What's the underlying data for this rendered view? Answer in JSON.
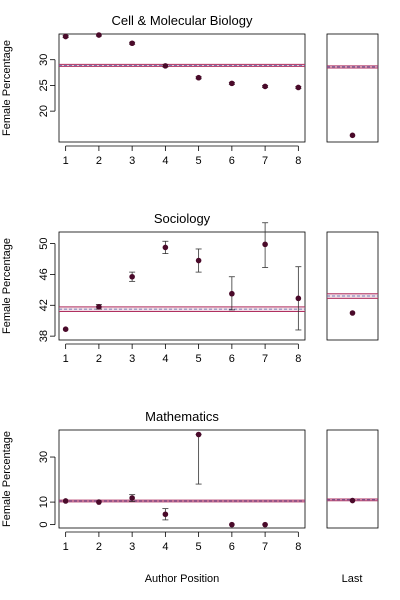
{
  "chart_data": [
    {
      "type": "scatter",
      "title": "Cell & Molecular Biology",
      "ylabel": "Female Percentage",
      "xlabel": "",
      "x": [
        1,
        2,
        3,
        4,
        5,
        6,
        7,
        8
      ],
      "xticks": [
        "1",
        "2",
        "3",
        "4",
        "5",
        "6",
        "7",
        "8"
      ],
      "xlim": [
        0.8,
        8.2
      ],
      "ylim": [
        14,
        35
      ],
      "yticks": [
        20,
        25,
        30
      ],
      "y": [
        34.5,
        34.8,
        33.2,
        28.8,
        26.5,
        25.4,
        24.8,
        24.6
      ],
      "err_low": [
        0.2,
        0.2,
        0.2,
        0.2,
        0.2,
        0.2,
        0.2,
        0.2
      ],
      "err_high": [
        0.2,
        0.2,
        0.2,
        0.2,
        0.2,
        0.2,
        0.2,
        0.2
      ],
      "band": {
        "low": 28.7,
        "mean": 28.9,
        "high": 29.1
      },
      "last": {
        "y": 15.3,
        "err_low": 0.2,
        "err_high": 0.2,
        "band": {
          "low": 28.4,
          "mean": 28.6,
          "high": 28.8
        }
      }
    },
    {
      "type": "scatter",
      "title": "Sociology",
      "ylabel": "Female Percentage",
      "xlabel": "",
      "x": [
        1,
        2,
        3,
        4,
        5,
        6,
        7,
        8
      ],
      "xticks": [
        "1",
        "2",
        "3",
        "4",
        "5",
        "6",
        "7",
        "8"
      ],
      "xlim": [
        0.8,
        8.2
      ],
      "ylim": [
        37.5,
        51.5
      ],
      "yticks": [
        38,
        42,
        46,
        50
      ],
      "y": [
        38.9,
        41.8,
        45.7,
        49.5,
        47.8,
        43.5,
        49.9,
        42.9
      ],
      "err_low": [
        0.1,
        0.3,
        0.6,
        0.8,
        1.5,
        2.1,
        3.0,
        4.1
      ],
      "err_high": [
        0.1,
        0.3,
        0.6,
        0.8,
        1.5,
        2.2,
        2.8,
        4.1
      ],
      "band": {
        "low": 41.2,
        "mean": 41.5,
        "high": 41.8
      },
      "last": {
        "y": 41.0,
        "err_low": 0.3,
        "err_high": 0.3,
        "band": {
          "low": 42.9,
          "mean": 43.2,
          "high": 43.5
        }
      }
    },
    {
      "type": "scatter",
      "title": "Mathematics",
      "ylabel": "Female Percentage",
      "xlabel": "",
      "x": [
        1,
        2,
        3,
        4,
        5,
        6,
        7,
        8
      ],
      "xticks": [
        "1",
        "2",
        "3",
        "4",
        "5",
        "6",
        "7",
        "8"
      ],
      "xlim": [
        0.8,
        8.2
      ],
      "ylim": [
        -1.5,
        42
      ],
      "yticks": [
        0,
        10,
        30
      ],
      "y": [
        10.5,
        10.0,
        11.8,
        4.6,
        40.0,
        0,
        0,
        null
      ],
      "err_low": [
        0.3,
        0.4,
        1.5,
        2.5,
        22.0,
        0,
        0,
        null
      ],
      "err_high": [
        0.3,
        0.4,
        1.5,
        2.5,
        0.0,
        0,
        0,
        null
      ],
      "band": {
        "low": 10.1,
        "mean": 10.5,
        "high": 10.9
      },
      "last": {
        "y": 10.7,
        "err_low": 0.3,
        "err_high": 0.3,
        "band": {
          "low": 10.6,
          "mean": 11.0,
          "high": 11.4
        }
      }
    }
  ],
  "xlabel_bottom": "Author Position",
  "last_label": "Last"
}
